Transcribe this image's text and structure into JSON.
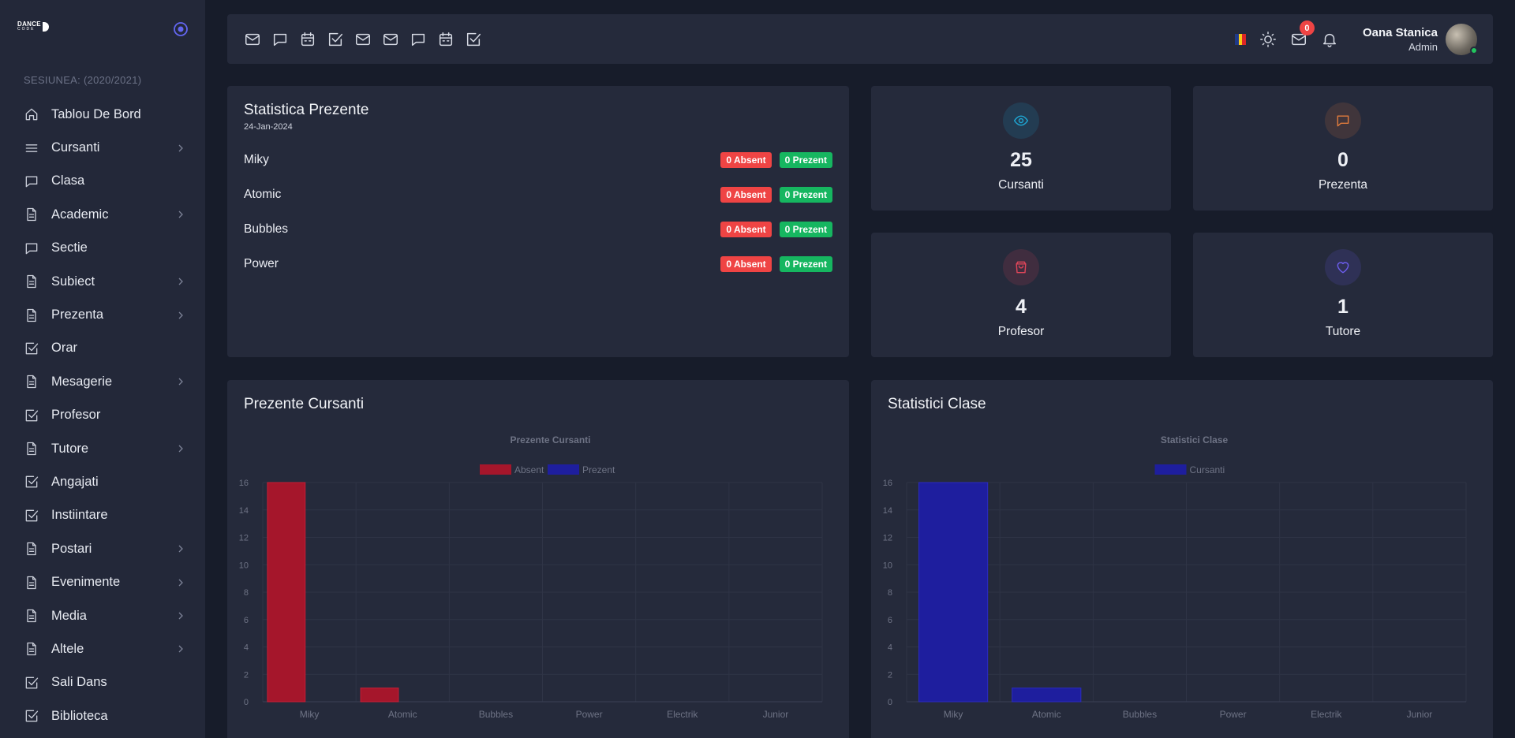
{
  "app": {
    "logo_main": "DANCE",
    "logo_sub": "CODE",
    "session": "SESIUNEA: (2020/2021)"
  },
  "sidebar": {
    "items": [
      {
        "label": "Tablou De Bord",
        "icon": "home-icon",
        "chevron": false
      },
      {
        "label": "Cursanti",
        "icon": "menu-icon",
        "chevron": true
      },
      {
        "label": "Clasa",
        "icon": "chat-icon",
        "chevron": false
      },
      {
        "label": "Academic",
        "icon": "document-icon",
        "chevron": true
      },
      {
        "label": "Sectie",
        "icon": "chat-icon",
        "chevron": false
      },
      {
        "label": "Subiect",
        "icon": "document-icon",
        "chevron": true
      },
      {
        "label": "Prezenta",
        "icon": "document-icon",
        "chevron": true
      },
      {
        "label": "Orar",
        "icon": "checkbox-icon",
        "chevron": false
      },
      {
        "label": "Mesagerie",
        "icon": "document-icon",
        "chevron": true
      },
      {
        "label": "Profesor",
        "icon": "checkbox-icon",
        "chevron": false
      },
      {
        "label": "Tutore",
        "icon": "document-icon",
        "chevron": true
      },
      {
        "label": "Angajati",
        "icon": "checkbox-icon",
        "chevron": false
      },
      {
        "label": "Instiintare",
        "icon": "checkbox-icon",
        "chevron": false
      },
      {
        "label": "Postari",
        "icon": "document-icon",
        "chevron": true
      },
      {
        "label": "Evenimente",
        "icon": "document-icon",
        "chevron": true
      },
      {
        "label": "Media",
        "icon": "document-icon",
        "chevron": true
      },
      {
        "label": "Altele",
        "icon": "document-icon",
        "chevron": true
      },
      {
        "label": "Sali Dans",
        "icon": "checkbox-icon",
        "chevron": false
      },
      {
        "label": "Biblioteca",
        "icon": "checkbox-icon",
        "chevron": false
      }
    ]
  },
  "topbar": {
    "shortcuts": [
      "mail-icon",
      "chat-icon",
      "calendar-icon",
      "checkbox-icon",
      "mail-icon",
      "mail-icon",
      "chat-icon",
      "calendar-icon",
      "checkbox-icon"
    ],
    "mail_count": "0",
    "user_name": "Oana Stanica",
    "user_role": "Admin",
    "colors": {
      "flag": [
        "#1f3a8a",
        "#facc15",
        "#dc2626"
      ]
    }
  },
  "attendance": {
    "title": "Statistica Prezente",
    "date": "24-Jan-2024",
    "rows": [
      {
        "name": "Miky",
        "absent": "0 Absent",
        "present": "0 Prezent"
      },
      {
        "name": "Atomic",
        "absent": "0 Absent",
        "present": "0 Prezent"
      },
      {
        "name": "Bubbles",
        "absent": "0 Absent",
        "present": "0 Prezent"
      },
      {
        "name": "Power",
        "absent": "0 Absent",
        "present": "0 Prezent"
      }
    ]
  },
  "stats": [
    {
      "value": "25",
      "label": "Cursanti",
      "icon": "eye-icon",
      "color": "#1ea7d4"
    },
    {
      "value": "0",
      "label": "Prezenta",
      "icon": "chat-icon",
      "color": "#e07b3c"
    },
    {
      "value": "4",
      "label": "Profesor",
      "icon": "bag-icon",
      "color": "#e0465a"
    },
    {
      "value": "1",
      "label": "Tutore",
      "icon": "heart-icon",
      "color": "#6d5ef0"
    }
  ],
  "chart_cards": {
    "left_title": "Prezente Cursanti",
    "right_title": "Statistici Clase"
  },
  "chart_data": [
    {
      "type": "bar",
      "title": "Prezente Cursanti",
      "categories": [
        "Miky",
        "Atomic",
        "Bubbles",
        "Power",
        "Electrik",
        "Junior"
      ],
      "series": [
        {
          "name": "Absent",
          "values": [
            16,
            1,
            0,
            0,
            0,
            0
          ],
          "color": "#a5162b"
        },
        {
          "name": "Prezent",
          "values": [
            0,
            0,
            0,
            0,
            0,
            0
          ],
          "color": "#1e1e9e"
        }
      ],
      "ylim": [
        0,
        16
      ],
      "yticks": [
        0,
        2,
        4,
        6,
        8,
        10,
        12,
        14,
        16
      ],
      "legend": "top",
      "grid": true
    },
    {
      "type": "bar",
      "title": "Statistici Clase",
      "categories": [
        "Miky",
        "Atomic",
        "Bubbles",
        "Power",
        "Electrik",
        "Junior"
      ],
      "series": [
        {
          "name": "Cursanti",
          "values": [
            16,
            1,
            0,
            0,
            0,
            0
          ],
          "color": "#1e1e9e"
        }
      ],
      "ylim": [
        0,
        16
      ],
      "yticks": [
        0,
        2,
        4,
        6,
        8,
        10,
        12,
        14,
        16
      ],
      "legend": "top",
      "grid": true
    }
  ]
}
